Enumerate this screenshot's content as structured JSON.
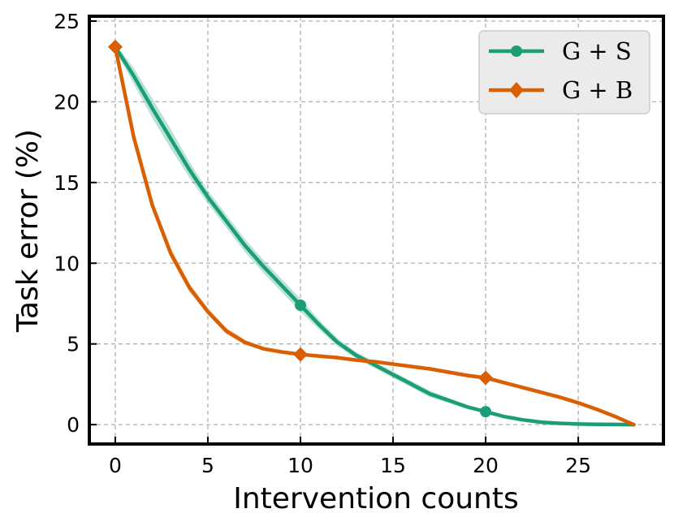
{
  "chart_data": {
    "type": "line",
    "title": "",
    "xlabel": "Intervention counts",
    "ylabel": "Task error (%)",
    "xlim": [
      -1.4,
      29.6
    ],
    "ylim": [
      -1.2,
      25.3
    ],
    "xticks": [
      0,
      5,
      10,
      15,
      20,
      25
    ],
    "yticks": [
      0,
      5,
      10,
      15,
      20,
      25
    ],
    "grid": true,
    "legend_position": "top-right",
    "series": [
      {
        "name": "G + S",
        "color": "#1b9e77",
        "marker": "circle",
        "marker_x": [
          10,
          20
        ],
        "x": [
          0,
          1,
          2,
          3,
          4,
          5,
          6,
          7,
          8,
          9,
          10,
          11,
          12,
          13,
          14,
          15,
          16,
          17,
          18,
          19,
          20,
          21,
          22,
          23,
          24,
          25,
          26,
          27,
          28
        ],
        "values": [
          23.4,
          21.6,
          19.6,
          17.7,
          15.8,
          14.1,
          12.6,
          11.1,
          9.8,
          8.6,
          7.4,
          6.2,
          5.1,
          4.3,
          3.7,
          3.1,
          2.5,
          1.9,
          1.5,
          1.1,
          0.8,
          0.5,
          0.3,
          0.15,
          0.08,
          0.04,
          0.02,
          0.01,
          0.0
        ],
        "band": [
          0.2,
          0.5,
          0.6,
          0.6,
          0.5,
          0.4,
          0.4,
          0.4,
          0.4,
          0.4,
          0.4,
          0.3,
          0.25,
          0.2,
          0.2,
          0.2,
          0.2,
          0.2,
          0.15,
          0.12,
          0.1,
          0.1,
          0.08,
          0.06,
          0.04,
          0.03,
          0.02,
          0.01,
          0.0
        ]
      },
      {
        "name": "G + B",
        "color": "#d95f02",
        "marker": "diamond",
        "marker_x": [
          0,
          10,
          20
        ],
        "x": [
          0,
          1,
          2,
          3,
          4,
          5,
          6,
          7,
          8,
          9,
          10,
          11,
          12,
          13,
          14,
          15,
          16,
          17,
          18,
          19,
          20,
          21,
          22,
          23,
          24,
          25,
          26,
          27,
          28
        ],
        "values": [
          23.4,
          17.8,
          13.6,
          10.6,
          8.5,
          7.0,
          5.8,
          5.1,
          4.7,
          4.5,
          4.35,
          4.25,
          4.15,
          4.0,
          3.9,
          3.75,
          3.6,
          3.45,
          3.25,
          3.05,
          2.9,
          2.6,
          2.3,
          2.0,
          1.7,
          1.35,
          0.95,
          0.5,
          0.0
        ],
        "band": [
          0.1,
          0.3,
          0.3,
          0.3,
          0.25,
          0.2,
          0.2,
          0.15,
          0.1,
          0.1,
          0.1,
          0.1,
          0.1,
          0.1,
          0.1,
          0.1,
          0.1,
          0.1,
          0.1,
          0.1,
          0.1,
          0.1,
          0.1,
          0.1,
          0.1,
          0.08,
          0.06,
          0.04,
          0.0
        ]
      }
    ]
  }
}
